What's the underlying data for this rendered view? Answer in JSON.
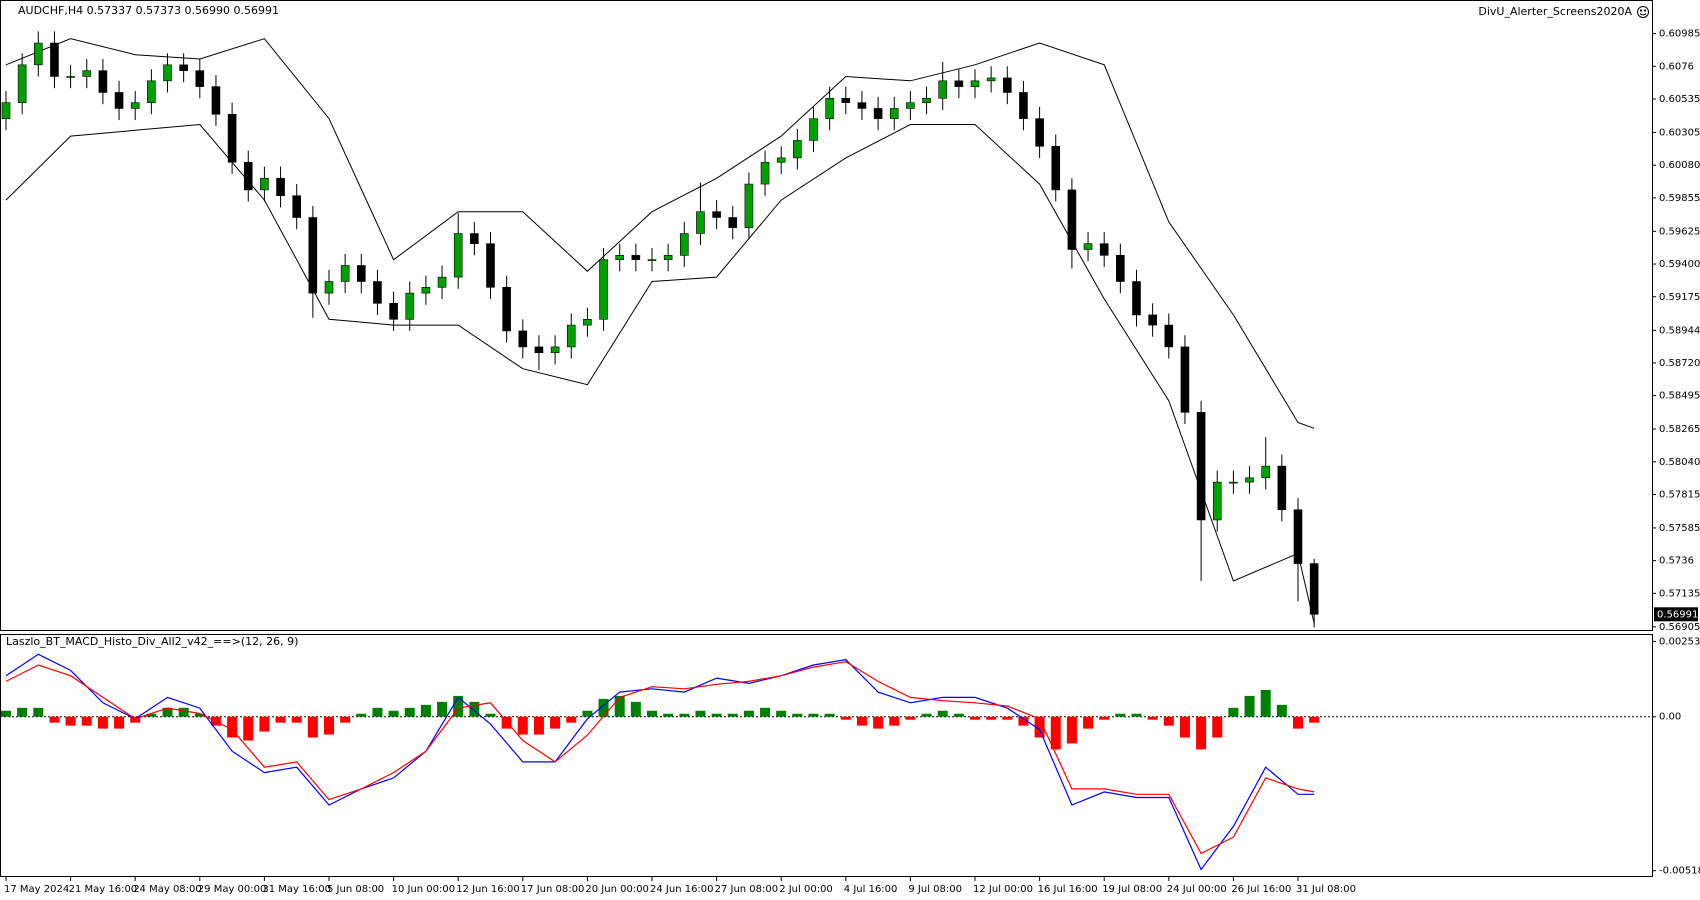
{
  "chart_data": [
    {
      "type": "candlestick",
      "title": "AUDCHF,H4  0.57337 0.57373 0.56990 0.56991",
      "annotation": "DivU_Alerter_Screens2020A",
      "last_price": 0.56991,
      "up_color": "#00a000",
      "down_color": "#000000",
      "open": [
        0.604,
        0.6051,
        0.6077,
        0.6092,
        0.6069,
        0.6069,
        0.6073,
        0.6058,
        0.6047,
        0.6051,
        0.6066,
        0.6077,
        0.6073,
        0.6062,
        0.6043,
        0.601,
        0.5991,
        0.5999,
        0.5987,
        0.5972,
        0.592,
        0.5928,
        0.5939,
        0.5928,
        0.5913,
        0.5902,
        0.592,
        0.5924,
        0.5931,
        0.5961,
        0.5954,
        0.5924,
        0.5894,
        0.5883,
        0.5879,
        0.5883,
        0.5898,
        0.5902,
        0.5943,
        0.5946,
        0.5943,
        0.5943,
        0.5946,
        0.5961,
        0.5976,
        0.5972,
        0.5965,
        0.5995,
        0.601,
        0.6013,
        0.6025,
        0.604,
        0.6054,
        0.6051,
        0.6047,
        0.604,
        0.6047,
        0.6051,
        0.6054,
        0.6066,
        0.6062,
        0.6066,
        0.6068,
        0.6058,
        0.604,
        0.6021,
        0.5991,
        0.595,
        0.5954,
        0.5946,
        0.5928,
        0.5905,
        0.5898,
        0.5883,
        0.5838,
        0.5764,
        0.579,
        0.579,
        0.5793,
        0.5801,
        0.5771,
        0.5734
      ],
      "high": [
        0.6059,
        0.6085,
        0.61,
        0.61,
        0.6077,
        0.6081,
        0.6081,
        0.6066,
        0.6059,
        0.6074,
        0.6085,
        0.6085,
        0.6081,
        0.607,
        0.6051,
        0.6018,
        0.6007,
        0.6007,
        0.5995,
        0.598,
        0.5936,
        0.5947,
        0.5947,
        0.5936,
        0.5921,
        0.5928,
        0.5932,
        0.5939,
        0.5975,
        0.5969,
        0.5962,
        0.5932,
        0.5902,
        0.5891,
        0.5891,
        0.5906,
        0.591,
        0.5951,
        0.5954,
        0.5954,
        0.5951,
        0.5954,
        0.5969,
        0.5996,
        0.5984,
        0.598,
        0.6003,
        0.6018,
        0.6021,
        0.6033,
        0.6048,
        0.6062,
        0.6062,
        0.6059,
        0.6055,
        0.6055,
        0.6059,
        0.6062,
        0.6079,
        0.6074,
        0.6074,
        0.6076,
        0.6076,
        0.6066,
        0.6048,
        0.6029,
        0.5999,
        0.5962,
        0.5962,
        0.5954,
        0.5936,
        0.5913,
        0.5906,
        0.5891,
        0.5846,
        0.5798,
        0.5798,
        0.5801,
        0.5821,
        0.5809,
        0.5779,
        0.57373
      ],
      "low": [
        0.6032,
        0.6043,
        0.6069,
        0.6061,
        0.6061,
        0.6061,
        0.605,
        0.6039,
        0.6039,
        0.6043,
        0.6058,
        0.6065,
        0.6054,
        0.6035,
        0.6002,
        0.5983,
        0.5983,
        0.5979,
        0.5964,
        0.5903,
        0.5912,
        0.592,
        0.592,
        0.5905,
        0.5894,
        0.5894,
        0.5912,
        0.5916,
        0.5923,
        0.5946,
        0.5916,
        0.5886,
        0.5875,
        0.5867,
        0.5871,
        0.5875,
        0.589,
        0.5894,
        0.5935,
        0.5935,
        0.5935,
        0.5935,
        0.5938,
        0.5953,
        0.5964,
        0.5957,
        0.5957,
        0.5987,
        0.6002,
        0.6005,
        0.6017,
        0.6032,
        0.6043,
        0.6039,
        0.6032,
        0.6032,
        0.6039,
        0.6043,
        0.6046,
        0.6054,
        0.6054,
        0.6058,
        0.605,
        0.6032,
        0.6013,
        0.5983,
        0.5937,
        0.5942,
        0.5938,
        0.592,
        0.5897,
        0.589,
        0.5875,
        0.583,
        0.5722,
        0.5756,
        0.5782,
        0.5782,
        0.5785,
        0.5763,
        0.5708,
        0.569
      ],
      "close": [
        0.6051,
        0.6077,
        0.6092,
        0.6069,
        0.6069,
        0.6073,
        0.6058,
        0.6047,
        0.6051,
        0.6066,
        0.6077,
        0.6073,
        0.6062,
        0.6043,
        0.601,
        0.5991,
        0.5999,
        0.5987,
        0.5972,
        0.592,
        0.5928,
        0.5939,
        0.5928,
        0.5913,
        0.5902,
        0.592,
        0.5924,
        0.5931,
        0.5961,
        0.5954,
        0.5924,
        0.5894,
        0.5883,
        0.5879,
        0.5883,
        0.5898,
        0.5902,
        0.5943,
        0.5946,
        0.5943,
        0.5943,
        0.5946,
        0.5961,
        0.5976,
        0.5972,
        0.5965,
        0.5995,
        0.601,
        0.6013,
        0.6025,
        0.604,
        0.6054,
        0.6051,
        0.6047,
        0.604,
        0.6047,
        0.6051,
        0.6054,
        0.6066,
        0.6062,
        0.6066,
        0.6068,
        0.6058,
        0.604,
        0.6021,
        0.5991,
        0.595,
        0.5954,
        0.5946,
        0.5928,
        0.5905,
        0.5898,
        0.5883,
        0.5838,
        0.5764,
        0.579,
        0.579,
        0.5793,
        0.5801,
        0.5771,
        0.5734,
        0.56991
      ],
      "bands": [
        {
          "color": "#000000",
          "x": [
            0,
            4,
            8,
            12,
            16,
            20,
            24,
            28,
            32,
            36,
            40,
            44,
            48,
            52,
            56,
            60,
            64,
            68,
            72,
            76,
            80,
            81
          ],
          "values": [
            0.6077,
            0.6095,
            0.6084,
            0.6081,
            0.6095,
            0.604,
            0.5943,
            0.5976,
            0.5976,
            0.5935,
            0.5976,
            0.5999,
            0.6028,
            0.6069,
            0.6066,
            0.6077,
            0.6092,
            0.6077,
            0.5969,
            0.5905,
            0.5831,
            0.5827
          ]
        },
        {
          "color": "#000000",
          "x": [
            0,
            4,
            8,
            12,
            16,
            20,
            24,
            28,
            32,
            36,
            40,
            44,
            48,
            52,
            56,
            60,
            64,
            68,
            72,
            76,
            80,
            81
          ],
          "values": [
            0.5984,
            0.6028,
            0.6032,
            0.6036,
            0.5984,
            0.5902,
            0.5898,
            0.5898,
            0.5868,
            0.5857,
            0.5928,
            0.5931,
            0.5984,
            0.6013,
            0.6036,
            0.6036,
            0.5995,
            0.5916,
            0.5846,
            0.5722,
            0.5741,
            0.5693
          ]
        }
      ],
      "ylim": [
        0.56883,
        0.61216
      ],
      "yticks": [
        0.60985,
        0.6076,
        0.60535,
        0.60305,
        {
          "value": 0.6008,
          "label": "0.60080"
        },
        0.59855,
        0.59625,
        {
          "value": 0.594,
          "label": "0.59400"
        },
        0.59175,
        0.58944,
        {
          "value": 0.5872,
          "label": "0.58720"
        },
        0.58495,
        0.58265,
        {
          "value": 0.5804,
          "label": "0.58040"
        },
        0.57815,
        0.57585,
        0.5736,
        0.57135,
        0.56905
      ],
      "xticks": [
        {
          "value": 0,
          "label": "17 May 2024"
        },
        {
          "value": 4,
          "label": "21 May 16:00"
        },
        {
          "value": 8,
          "label": "24 May 08:00"
        },
        {
          "value": 12,
          "label": "29 May 00:00"
        },
        {
          "value": 16,
          "label": "31 May 16:00"
        },
        {
          "value": 20,
          "label": "5 Jun 08:00"
        },
        {
          "value": 24,
          "label": "10 Jun 00:00"
        },
        {
          "value": 28,
          "label": "12 Jun 16:00"
        },
        {
          "value": 32,
          "label": "17 Jun 08:00"
        },
        {
          "value": 36,
          "label": "20 Jun 00:00"
        },
        {
          "value": 40,
          "label": "24 Jun 16:00"
        },
        {
          "value": 44,
          "label": "27 Jun 08:00"
        },
        {
          "value": 48,
          "label": "2 Jul 00:00"
        },
        {
          "value": 52,
          "label": "4 Jul 16:00"
        },
        {
          "value": 56,
          "label": "9 Jul 08:00"
        },
        {
          "value": 60,
          "label": "12 Jul 00:00"
        },
        {
          "value": 64,
          "label": "16 Jul 16:00"
        },
        {
          "value": 68,
          "label": "19 Jul 08:00"
        },
        {
          "value": 72,
          "label": "24 Jul 00:00"
        },
        {
          "value": 76,
          "label": "26 Jul 16:00"
        },
        {
          "value": 80,
          "label": "31 Jul 08:00"
        }
      ]
    },
    {
      "type": "bar",
      "title": "Laszlo_BT_MACD_Histo_Div_All2_v42_==>(12, 26, 9)",
      "up_color": "#008000",
      "down_color": "#ff0000",
      "values": [
        0.0002,
        0.0003,
        0.0003,
        -0.0002,
        -0.0003,
        -0.0003,
        -0.0004,
        -0.0004,
        -0.0002,
        0.0001,
        0.0003,
        0.0003,
        0.0001,
        -0.0003,
        -0.0007,
        -0.0008,
        -0.0005,
        -0.0002,
        -0.0002,
        -0.0007,
        -0.0006,
        -0.0002,
        0.0001,
        0.0003,
        0.0002,
        0.0003,
        0.0004,
        0.0005,
        0.0007,
        0.0005,
        0.0001,
        -0.0004,
        -0.0006,
        -0.0006,
        -0.0004,
        -0.0002,
        0.0002,
        0.0006,
        0.0007,
        0.0005,
        0.0002,
        0.0001,
        0.0001,
        0.0002,
        0.0001,
        0.0001,
        0.0002,
        0.0003,
        0.0002,
        0.0001,
        0.0001,
        0.0001,
        -0.0001,
        -0.0003,
        -0.0004,
        -0.0003,
        -0.0001,
        0.0001,
        0.0002,
        0.0001,
        -0.0001,
        -0.0001,
        -0.0001,
        -0.0003,
        -0.0007,
        -0.0011,
        -0.0009,
        -0.0004,
        -0.0001,
        0.0001,
        0.0001,
        -0.0001,
        -0.0003,
        -0.0007,
        -0.0011,
        -0.0007,
        0.0003,
        0.0007,
        0.0009,
        0.0004,
        -0.0004,
        -0.0002
      ],
      "lines": [
        {
          "color": "#0000ff",
          "x": [
            0,
            2,
            4,
            6,
            8,
            10,
            12,
            14,
            16,
            18,
            20,
            22,
            24,
            26,
            28,
            30,
            32,
            34,
            36,
            38,
            40,
            42,
            44,
            46,
            48,
            50,
            52,
            54,
            56,
            58,
            60,
            62,
            64,
            66,
            68,
            70,
            72,
            74,
            76,
            78,
            80,
            81
          ],
          "values": [
            0.00138,
            0.0021,
            0.00156,
            0.00047,
            -7e-05,
            0.00065,
            0.00029,
            -0.00116,
            -0.00188,
            -0.0017,
            -0.00297,
            -0.00243,
            -0.00206,
            -0.00116,
            0.00065,
            -0.00025,
            -0.00152,
            -0.00152,
            -7e-05,
            0.00083,
            0.00094,
            0.00083,
            0.0013,
            0.00112,
            0.00138,
            0.00174,
            0.00192,
            0.00083,
            0.00047,
            0.00065,
            0.00065,
            0.00029,
            -0.00043,
            -0.00297,
            -0.00253,
            -0.00272,
            -0.00272,
            -0.00514,
            -0.00369,
            -0.0017,
            -0.00261,
            -0.00261
          ]
        },
        {
          "color": "#ff0000",
          "x": [
            0,
            2,
            4,
            6,
            8,
            10,
            12,
            14,
            16,
            18,
            20,
            22,
            24,
            26,
            28,
            30,
            32,
            34,
            36,
            38,
            40,
            42,
            44,
            46,
            48,
            50,
            52,
            54,
            56,
            58,
            60,
            62,
            64,
            66,
            68,
            70,
            72,
            74,
            76,
            78,
            80,
            81
          ],
          "values": [
            0.00119,
            0.00174,
            0.00138,
            0.00065,
            -7e-05,
            0.00029,
            0.00011,
            -0.00043,
            -0.0017,
            -0.00152,
            -0.00279,
            -0.00243,
            -0.00188,
            -0.00116,
            0.00029,
            0.00047,
            -0.0008,
            -0.00152,
            -0.00062,
            0.00065,
            0.00101,
            0.00094,
            0.00109,
            0.00119,
            0.00138,
            0.00167,
            0.00185,
            0.00119,
            0.00065,
            0.00054,
            0.00047,
            0.00036,
            -7e-05,
            -0.00243,
            -0.00243,
            -0.00261,
            -0.00261,
            -0.0046,
            -0.00405,
            -0.00206,
            -0.00243,
            -0.00253
          ]
        }
      ],
      "ylim": [
        -0.00536,
        0.00275
      ],
      "yticks": [
        0.002534,
        {
          "value": 0,
          "label": "0.00"
        },
        -0.005181
      ]
    }
  ]
}
